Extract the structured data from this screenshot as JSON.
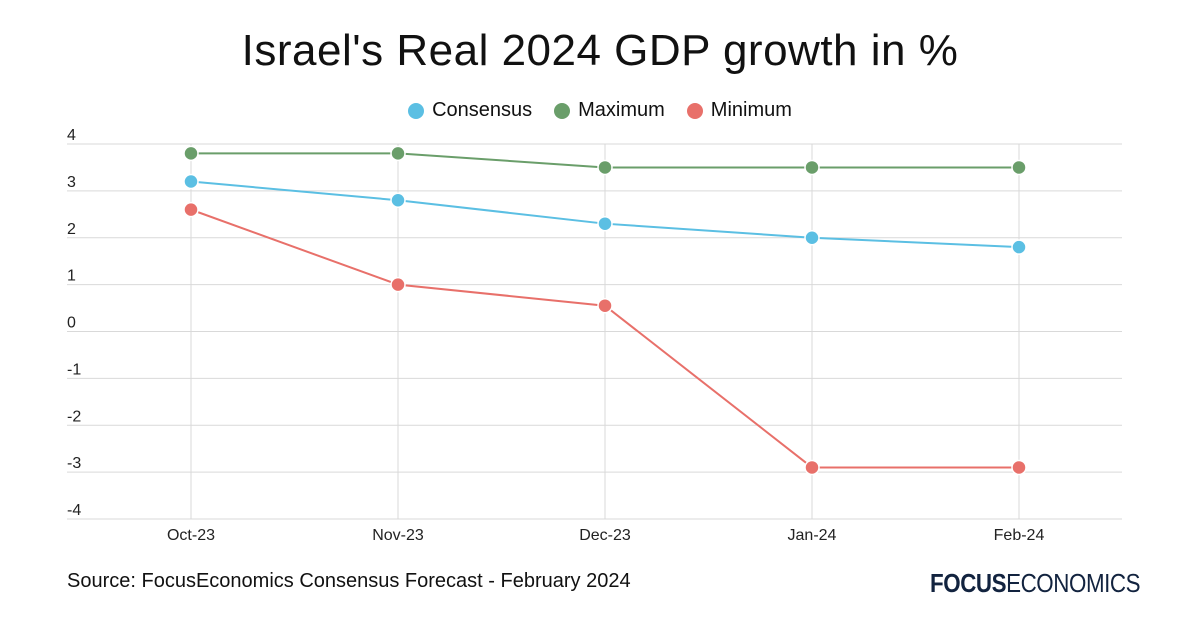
{
  "chart_data": {
    "type": "line",
    "title": "Israel's Real 2024 GDP growth in %",
    "categories": [
      "Oct-23",
      "Nov-23",
      "Dec-23",
      "Jan-24",
      "Feb-24"
    ],
    "series": [
      {
        "name": "Consensus",
        "color": "#5bbfe3",
        "values": [
          3.2,
          2.8,
          2.3,
          2.0,
          1.8
        ]
      },
      {
        "name": "Maximum",
        "color": "#6a9e6a",
        "values": [
          3.8,
          3.8,
          3.5,
          3.5,
          3.5
        ]
      },
      {
        "name": "Minimum",
        "color": "#e8706a",
        "values": [
          2.6,
          1.0,
          0.55,
          -2.9,
          -2.9
        ]
      }
    ],
    "ylim": [
      -4,
      4
    ],
    "yticks": [
      "4",
      "3",
      "2",
      "1",
      "0",
      "-1",
      "-2",
      "-3",
      "-4"
    ],
    "grid": true,
    "legend_position": "top-center"
  },
  "source": "Source: FocusEconomics Consensus Forecast - February 2024",
  "logo": {
    "part1": "FOCUS",
    "part2": "ECONOMICS",
    "color": "#12233f"
  }
}
